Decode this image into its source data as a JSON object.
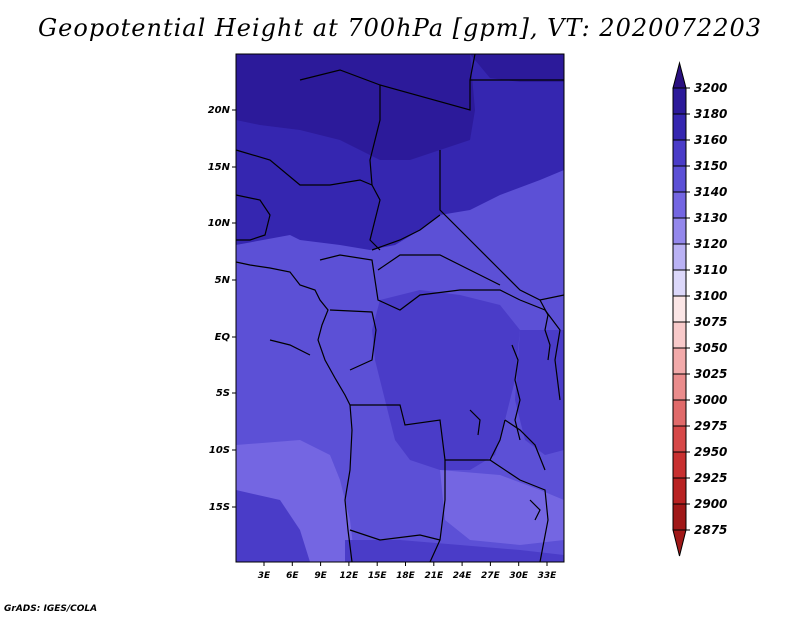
{
  "title": "Geopotential Height at 700hPa [gpm], VT: 2020072203",
  "footer": "GrADS: IGES/COLA",
  "map": {
    "lat_ticks": [
      "20N",
      "15N",
      "10N",
      "5N",
      "EQ",
      "5S",
      "10S",
      "15S"
    ],
    "lon_ticks": [
      "3E",
      "6E",
      "9E",
      "12E",
      "15E",
      "18E",
      "21E",
      "24E",
      "27E",
      "30E",
      "33E"
    ]
  },
  "colorbar": {
    "levels": [
      {
        "label": "3200",
        "color": "#2a1080"
      },
      {
        "label": "3180",
        "color": "#2c1a9a"
      },
      {
        "label": "3160",
        "color": "#3526b0"
      },
      {
        "label": "3150",
        "color": "#4a3cc8"
      },
      {
        "label": "3140",
        "color": "#5c50d6"
      },
      {
        "label": "3130",
        "color": "#7466e2"
      },
      {
        "label": "3120",
        "color": "#9488ec"
      },
      {
        "label": "3110",
        "color": "#bab2f4"
      },
      {
        "label": "3100",
        "color": "#dcd8fa"
      },
      {
        "label": "3075",
        "color": "#fbe6e6"
      },
      {
        "label": "3050",
        "color": "#f8caca"
      },
      {
        "label": "3025",
        "color": "#f2aaaa"
      },
      {
        "label": "3000",
        "color": "#ea8c8c"
      },
      {
        "label": "2975",
        "color": "#e06a6a"
      },
      {
        "label": "2950",
        "color": "#d64848"
      },
      {
        "label": "2925",
        "color": "#c83030"
      },
      {
        "label": "2900",
        "color": "#b82222"
      },
      {
        "label": "2875",
        "color": "#a01818"
      }
    ]
  },
  "field_colors": {
    "c3180": "#2c1a9a",
    "c3160": "#3526b0",
    "c3150": "#4a3cc8",
    "c3140": "#5c50d6",
    "c3130": "#7466e2"
  }
}
